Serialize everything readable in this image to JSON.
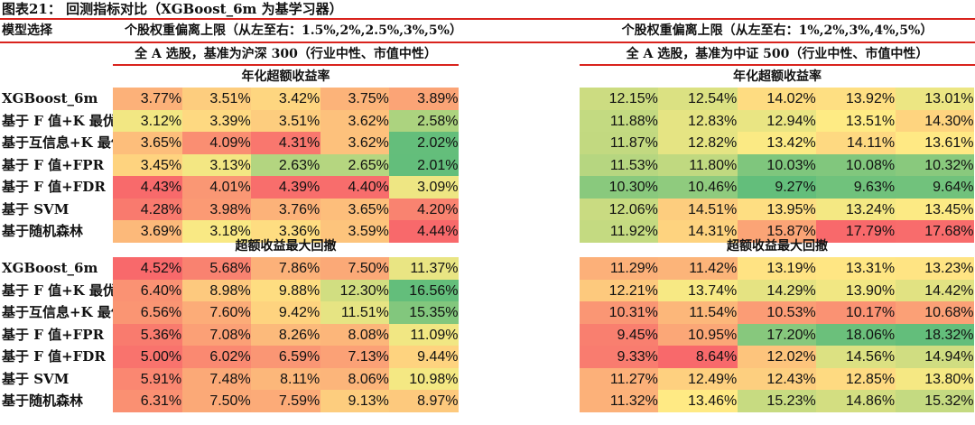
{
  "title": "图表21：  回测指标对比（XGBoost_6m 为基学习器）",
  "header": {
    "model_label": "模型选择",
    "left_range": "个股权重偏离上限（从左至右：1.5%,2%,2.5%,3%,5%）",
    "right_range": "个股权重偏离上限（从左至右：1%,2%,3%,4%,5%）",
    "left_universe": "全 A 选股，基准为沪深 300（行业中性、市值中性）",
    "right_universe": "全 A 选股，基准为中证 500（行业中性、市值中性）"
  },
  "colors": {
    "accent_line": "#d9231d",
    "scale_red": "#f8696b",
    "scale_yellow": "#ffeb84",
    "scale_green": "#63be7b"
  },
  "chart_data": {
    "type": "heatmap",
    "rows": [
      "XGBoost_6m",
      "基于 F 值+K 最优",
      "基于互信息+K 最优",
      "基于 F 值+FPR",
      "基于 F 值+FDR",
      "基于 SVM",
      "基于随机森林"
    ],
    "sections": [
      {
        "title": "年化超额收益率",
        "color_rule": "high=red, low=green",
        "left": [
          [
            "3.77%",
            "3.51%",
            "3.42%",
            "3.75%",
            "3.89%"
          ],
          [
            "3.12%",
            "3.39%",
            "3.51%",
            "3.62%",
            "2.58%"
          ],
          [
            "3.65%",
            "4.09%",
            "4.31%",
            "3.62%",
            "2.02%"
          ],
          [
            "3.45%",
            "3.13%",
            "2.63%",
            "2.65%",
            "2.01%"
          ],
          [
            "4.43%",
            "4.01%",
            "4.39%",
            "4.40%",
            "3.09%"
          ],
          [
            "4.28%",
            "3.98%",
            "3.76%",
            "3.65%",
            "4.20%"
          ],
          [
            "3.69%",
            "3.18%",
            "3.36%",
            "3.59%",
            "4.44%"
          ]
        ],
        "right": [
          [
            "12.15%",
            "12.54%",
            "14.02%",
            "13.92%",
            "13.01%"
          ],
          [
            "11.88%",
            "12.83%",
            "12.94%",
            "13.51%",
            "14.30%"
          ],
          [
            "11.87%",
            "12.82%",
            "13.42%",
            "14.11%",
            "13.61%"
          ],
          [
            "11.53%",
            "11.80%",
            "10.03%",
            "10.08%",
            "10.32%"
          ],
          [
            "10.30%",
            "10.46%",
            "9.27%",
            "9.63%",
            "9.64%"
          ],
          [
            "12.06%",
            "14.51%",
            "13.95%",
            "13.24%",
            "13.45%"
          ],
          [
            "11.92%",
            "14.31%",
            "15.87%",
            "17.79%",
            "17.68%"
          ]
        ]
      },
      {
        "title": "超额收益最大回撤",
        "color_rule": "low=red, high=green",
        "left": [
          [
            "4.52%",
            "5.68%",
            "7.86%",
            "7.50%",
            "11.37%"
          ],
          [
            "6.40%",
            "8.98%",
            "9.88%",
            "12.30%",
            "16.56%"
          ],
          [
            "6.56%",
            "7.60%",
            "9.42%",
            "11.51%",
            "15.35%"
          ],
          [
            "5.36%",
            "7.08%",
            "8.26%",
            "8.08%",
            "11.09%"
          ],
          [
            "5.00%",
            "6.02%",
            "6.59%",
            "7.13%",
            "9.44%"
          ],
          [
            "5.91%",
            "7.48%",
            "8.11%",
            "8.06%",
            "10.98%"
          ],
          [
            "6.31%",
            "7.50%",
            "7.59%",
            "9.13%",
            "8.97%"
          ]
        ],
        "right": [
          [
            "11.29%",
            "11.42%",
            "13.19%",
            "13.31%",
            "13.23%"
          ],
          [
            "12.21%",
            "13.74%",
            "14.29%",
            "13.90%",
            "14.42%"
          ],
          [
            "10.31%",
            "11.54%",
            "10.53%",
            "10.17%",
            "10.68%"
          ],
          [
            "9.45%",
            "10.95%",
            "17.20%",
            "18.06%",
            "18.32%"
          ],
          [
            "9.33%",
            "8.64%",
            "12.02%",
            "14.56%",
            "14.94%"
          ],
          [
            "11.27%",
            "12.49%",
            "12.43%",
            "12.85%",
            "13.80%"
          ],
          [
            "11.32%",
            "13.46%",
            "15.23%",
            "14.86%",
            "15.32%"
          ]
        ]
      }
    ]
  }
}
